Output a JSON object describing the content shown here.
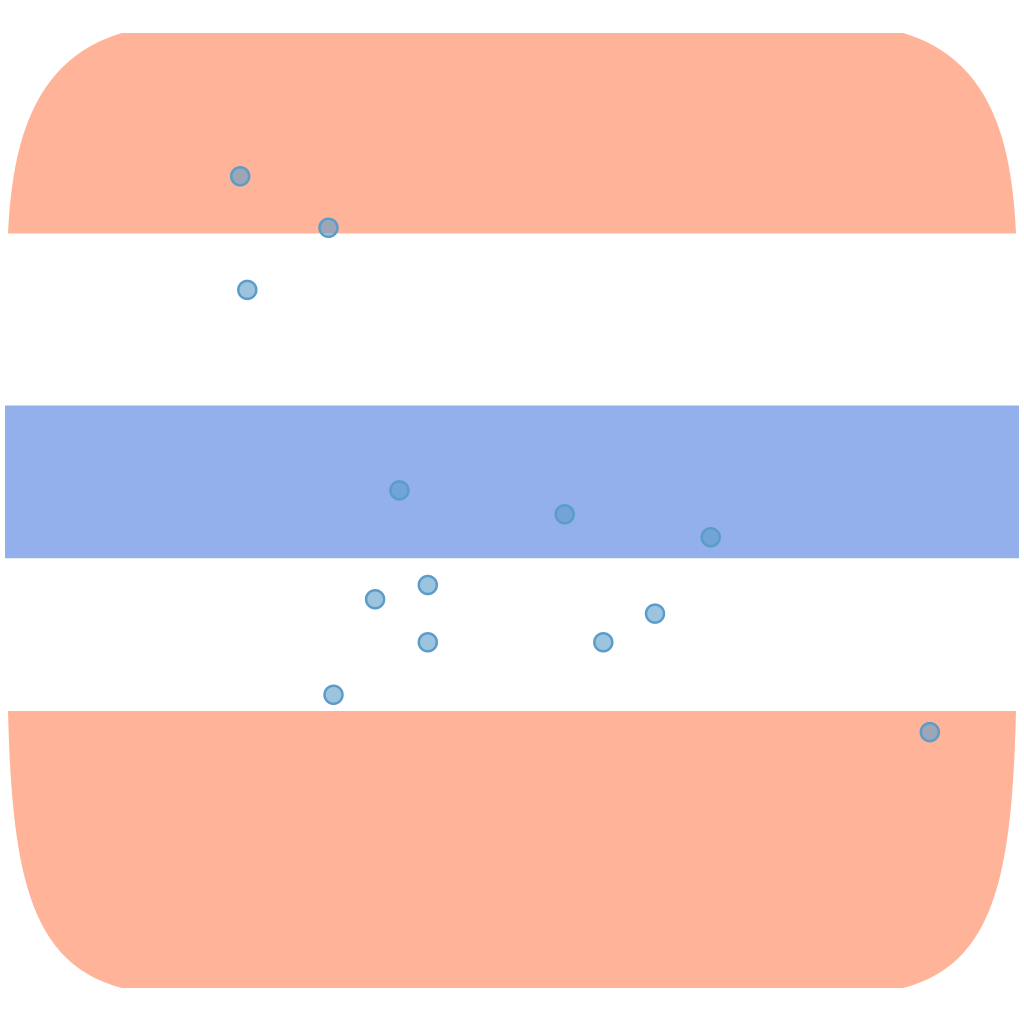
{
  "chart_data": {
    "type": "scatter",
    "title": "",
    "xlabel": "",
    "ylabel": "",
    "grid": false,
    "axes_visible": false,
    "xlim": [
      0,
      100
    ],
    "ylim": [
      0,
      100
    ],
    "background_bands": [
      {
        "name": "",
        "y_from": 79,
        "y_to": 100,
        "color": "#ffb399",
        "shape": "rounded-top"
      },
      {
        "name": "",
        "y_from": 45,
        "y_to": 61,
        "color": "#93b0ec",
        "shape": "rect"
      },
      {
        "name": "",
        "y_from": 0,
        "y_to": 29,
        "color": "#ffb399",
        "shape": "rounded-bottom"
      }
    ],
    "series": [
      {
        "name": "",
        "color": "#5b9cc9",
        "points": [
          {
            "x": 23.2,
            "y": 85.0
          },
          {
            "x": 31.9,
            "y": 79.6
          },
          {
            "x": 23.9,
            "y": 73.1
          },
          {
            "x": 38.9,
            "y": 52.1
          },
          {
            "x": 55.2,
            "y": 49.6
          },
          {
            "x": 69.6,
            "y": 47.2
          },
          {
            "x": 41.7,
            "y": 42.2
          },
          {
            "x": 36.5,
            "y": 40.7
          },
          {
            "x": 64.1,
            "y": 39.2
          },
          {
            "x": 41.7,
            "y": 36.2
          },
          {
            "x": 59.0,
            "y": 36.2
          },
          {
            "x": 32.4,
            "y": 30.7
          },
          {
            "x": 91.2,
            "y": 26.8
          }
        ]
      }
    ]
  }
}
